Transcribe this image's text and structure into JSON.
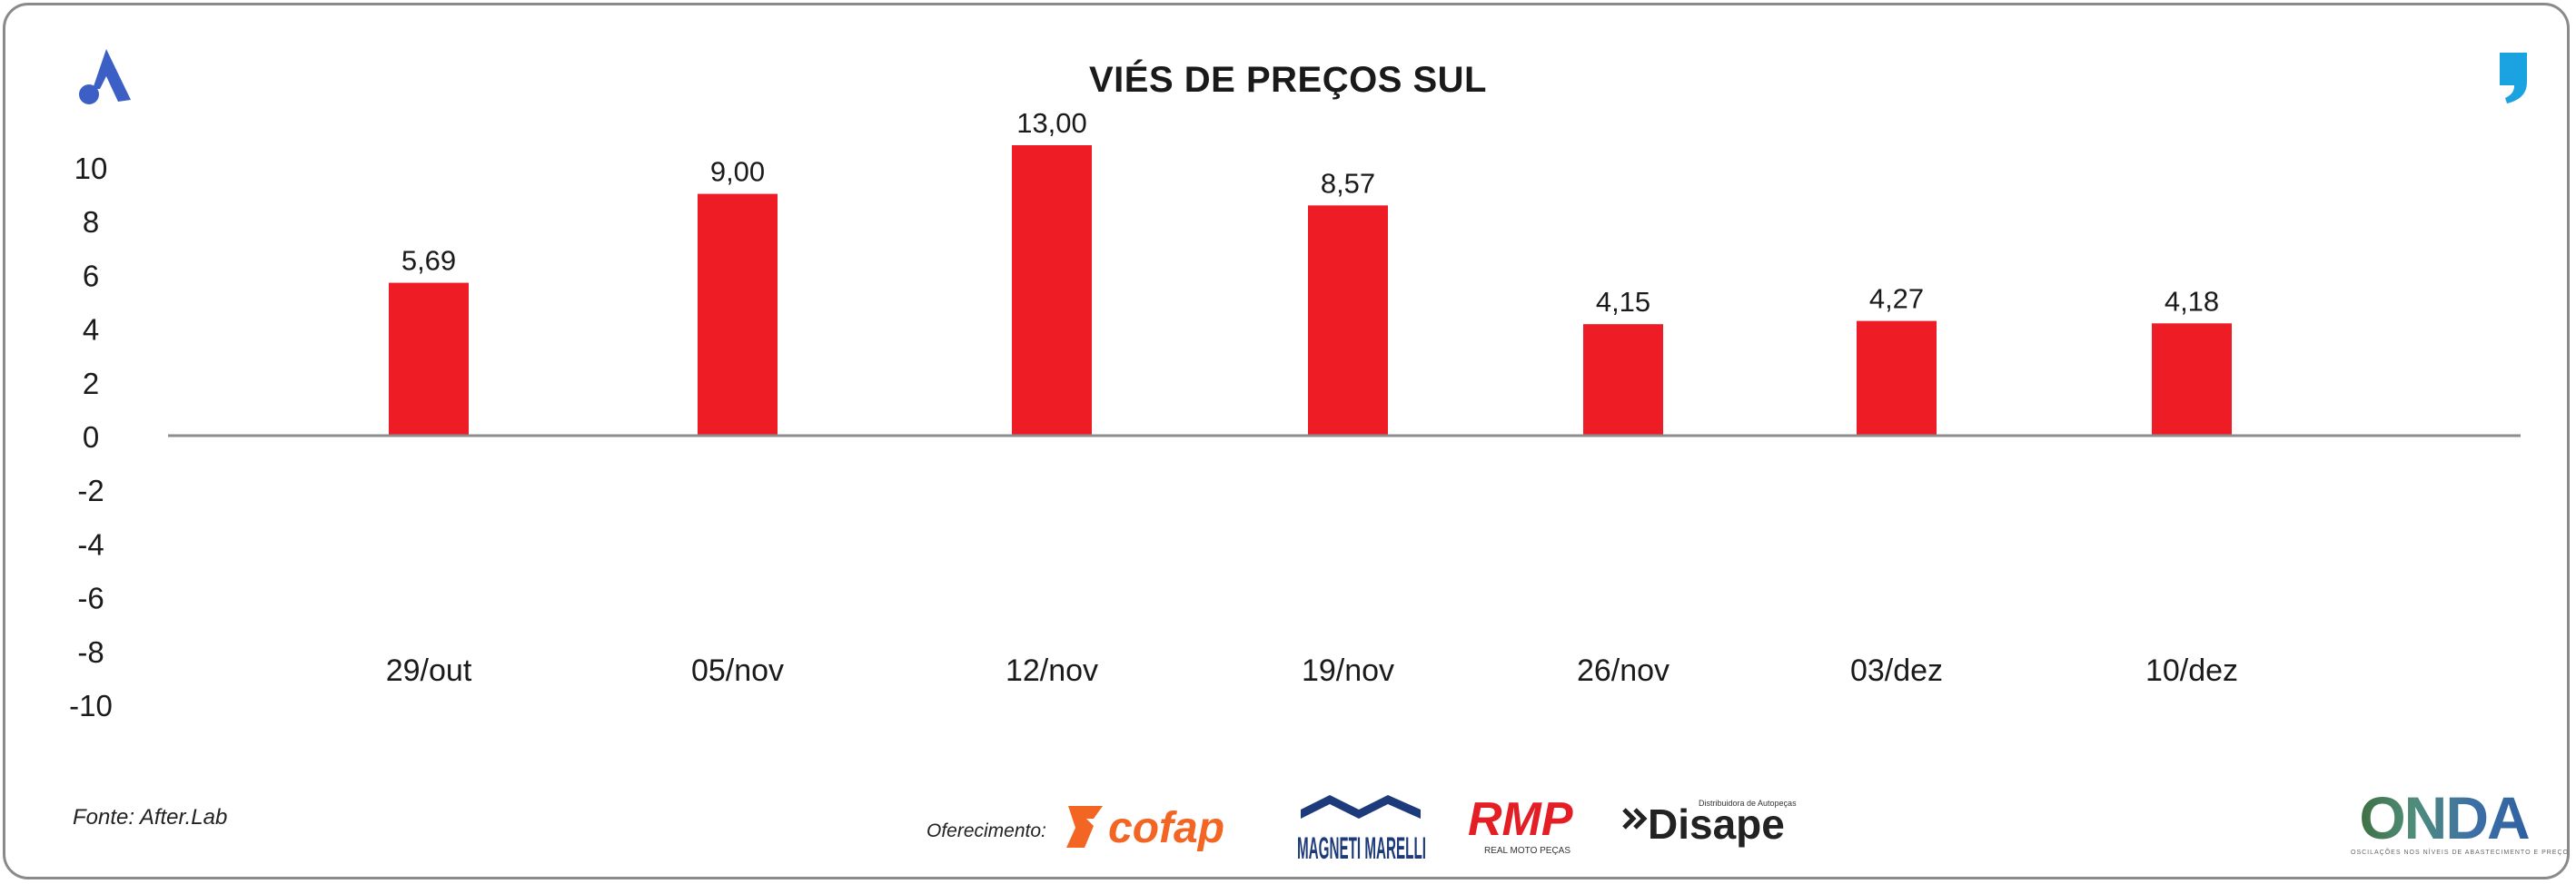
{
  "header": {
    "title": "VIÉS DE PREÇOS SUL"
  },
  "footer": {
    "source": "Fonte: After.Lab",
    "offer_label": "Oferecimento:",
    "sponsors": [
      "cofap",
      "MAGNETI MARELLI",
      "RMP",
      "Disape"
    ],
    "sponsor_subtexts": {
      "rmp": "REAL MOTO PEÇAS",
      "disape": "Distribuidora de Autopeças"
    },
    "onda": {
      "word": "ONDA",
      "tagline": "OSCILAÇÕES NOS NÍVEIS DE ABASTECIMENTO E PREÇO"
    }
  },
  "colors": {
    "bar": "#ee1c25",
    "axis": "#8c8c8c",
    "text": "#1a1a1a",
    "brand_blue": "#3b5fc4",
    "comma": "#1aa3e0"
  },
  "icons": {
    "top_left": "a-logo-icon",
    "top_right": "comma-logo-icon"
  },
  "chart_data": {
    "type": "bar",
    "title": "VIÉS DE PREÇOS SUL",
    "categories": [
      "29/out",
      "05/nov",
      "12/nov",
      "19/nov",
      "26/nov",
      "03/dez",
      "10/dez"
    ],
    "values": [
      5.69,
      9.0,
      13.0,
      8.57,
      4.15,
      4.27,
      4.18
    ],
    "value_labels": [
      "5,69",
      "9,00",
      "13,00",
      "8,57",
      "4,15",
      "4,27",
      "4,18"
    ],
    "yticks": [
      "10",
      "8",
      "6",
      "4",
      "2",
      "0",
      "-2",
      "-4",
      "-6",
      "-8",
      "-10"
    ],
    "ylim": [
      -10,
      10
    ],
    "xlabel": "",
    "ylabel": "",
    "grid": false,
    "legend": "none"
  }
}
